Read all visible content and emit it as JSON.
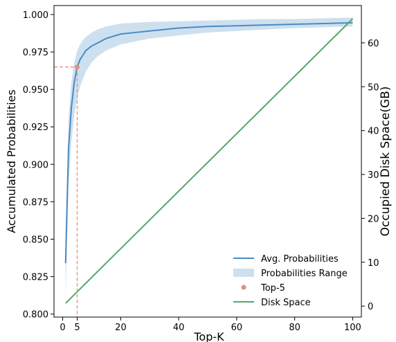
{
  "chart_data": {
    "type": "line",
    "xlabel": "Top-K",
    "ylabel_left": "Accumulated Probabilities",
    "ylabel_right": "Occupied Disk Space(GB)",
    "xlim": [
      -3,
      103
    ],
    "ylim_left": [
      0.798,
      1.006
    ],
    "ylim_right": [
      -2.5,
      68.5
    ],
    "x_ticks": [
      0,
      5,
      20,
      40,
      60,
      80,
      100
    ],
    "y_left_ticks": [
      0.8,
      0.825,
      0.85,
      0.875,
      0.9,
      0.925,
      0.95,
      0.975,
      1.0
    ],
    "y_left_tick_labels": [
      "0.800",
      "0.825",
      "0.850",
      "0.875",
      "0.900",
      "0.925",
      "0.950",
      "0.975",
      "1.000"
    ],
    "y_right_ticks": [
      0,
      10,
      20,
      30,
      40,
      50,
      60
    ],
    "grid": false,
    "legend_position": "bottom-right",
    "legend": [
      "Avg. Probabilities",
      "Probabilities Range",
      "Top-5",
      "Disk Space"
    ],
    "series": [
      {
        "name": "Avg. Probabilities",
        "axis": "left",
        "color": "#4a8ac4",
        "x": [
          1,
          2,
          3,
          4,
          5,
          6,
          7,
          8,
          10,
          12,
          15,
          20,
          25,
          30,
          40,
          50,
          60,
          70,
          80,
          90,
          100
        ],
        "y": [
          0.834,
          0.91,
          0.938,
          0.955,
          0.965,
          0.97,
          0.973,
          0.976,
          0.979,
          0.981,
          0.984,
          0.987,
          0.988,
          0.989,
          0.991,
          0.992,
          0.9925,
          0.993,
          0.9935,
          0.994,
          0.9945
        ]
      },
      {
        "name": "Probabilities Range",
        "axis": "left",
        "color": "#bcd5e9",
        "x": [
          1,
          2,
          3,
          4,
          5,
          6,
          7,
          8,
          10,
          12,
          15,
          20,
          25,
          30,
          40,
          50,
          60,
          70,
          80,
          90,
          100
        ],
        "lower": [
          0.812,
          0.885,
          0.915,
          0.933,
          0.944,
          0.952,
          0.957,
          0.962,
          0.968,
          0.972,
          0.976,
          0.98,
          0.982,
          0.984,
          0.986,
          0.988,
          0.989,
          0.99,
          0.991,
          0.9915,
          0.992
        ],
        "upper": [
          0.852,
          0.93,
          0.955,
          0.968,
          0.976,
          0.98,
          0.983,
          0.985,
          0.988,
          0.99,
          0.992,
          0.994,
          0.9945,
          0.995,
          0.9955,
          0.996,
          0.9965,
          0.997,
          0.997,
          0.9975,
          0.998
        ]
      },
      {
        "name": "Top-5",
        "axis": "left",
        "color": "#e0907f",
        "type": "scatter",
        "x": [
          5
        ],
        "y": [
          0.965
        ]
      },
      {
        "name": "Disk Space",
        "axis": "right",
        "color": "#55a868",
        "x": [
          1,
          100
        ],
        "y": [
          0.65,
          65.5
        ]
      }
    ]
  }
}
